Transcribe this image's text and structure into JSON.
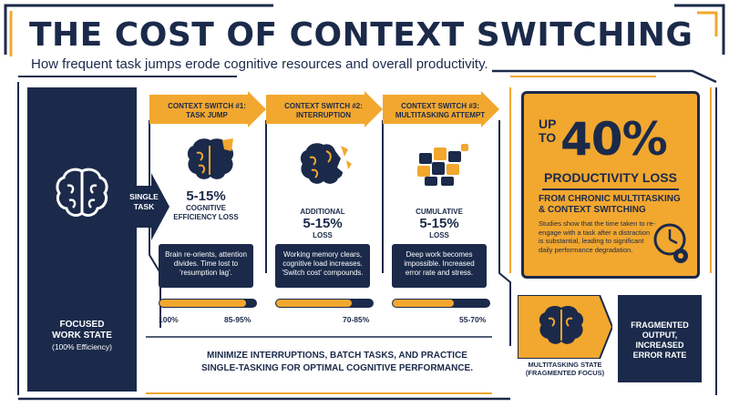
{
  "header": {
    "title": "THE COST OF CONTEXT SWITCHING",
    "subtitle": "How frequent task jumps erode cognitive resources and overall productivity."
  },
  "focused": {
    "label_line1": "FOCUSED",
    "label_line2": "WORK STATE",
    "efficiency": "(100% Efficiency)",
    "icon": "brain-icon"
  },
  "single_task": {
    "line1": "SINGLE",
    "line2": "TASK"
  },
  "panels": [
    {
      "head_line1": "CONTEXT SWITCH #1:",
      "head_line2": "TASK JUMP",
      "stat_pre": "",
      "stat_big": "5-15%",
      "stat_line1": "COGNITIVE",
      "stat_line2": "EFFICIENCY LOSS",
      "desc": "Brain re-orients, attention divides. Time lost to 'resumption lag'.",
      "bar_start": "100%",
      "bar_end": "85-95%",
      "fill": 0.9,
      "icon": "brain-chipped-icon"
    },
    {
      "head_line1": "CONTEXT SWITCH #2:",
      "head_line2": "INTERRUPTION",
      "stat_pre": "ADDITIONAL",
      "stat_big": "5-15%",
      "stat_line1": "LOSS",
      "stat_line2": "",
      "desc": "Working memory clears, cognitive load increases. 'Switch cost' compounds.",
      "bar_start": "",
      "bar_end": "70-85%",
      "fill": 0.78,
      "icon": "brain-cracked-icon"
    },
    {
      "head_line1": "CONTEXT SWITCH #3:",
      "head_line2": "MULTITASKING ATTEMPT",
      "stat_pre": "CUMULATIVE",
      "stat_big": "5-15%",
      "stat_line1": "LOSS",
      "stat_line2": "",
      "desc": "Deep work becomes impossible. Increased error rate and stress.",
      "bar_start": "",
      "bar_end": "55-70%",
      "fill": 0.63,
      "icon": "brain-puzzle-icon"
    }
  ],
  "summary": {
    "up_line1": "UP",
    "up_line2": "TO",
    "percent": "40%",
    "loss": "PRODUCTIVITY LOSS",
    "from_line1": "FROM CHRONIC MULTITASKING",
    "from_line2": "& CONTEXT SWITCHING",
    "studies": "Studies show that the time taken to re-engage with a task after a distraction is substantial, leading to significant daily performance degradation.",
    "icon": "clock-gear-icon"
  },
  "multitasking": {
    "line1": "MULTITASKING STATE",
    "line2": "(FRAGMENTED FOCUS)",
    "icon": "brain-fragmented-icon"
  },
  "fragmented": {
    "line1": "FRAGMENTED",
    "line2": "OUTPUT,",
    "line3": "INCREASED",
    "line4": "ERROR RATE"
  },
  "bottom": {
    "line1": "MINIMIZE INTERRUPTIONS, BATCH TASKS, AND PRACTICE",
    "line2": "SINGLE-TASKING FOR OPTIMAL COGNITIVE PERFORMANCE."
  },
  "colors": {
    "navy": "#1b2a4a",
    "orange": "#f2a72f",
    "white": "#ffffff"
  }
}
